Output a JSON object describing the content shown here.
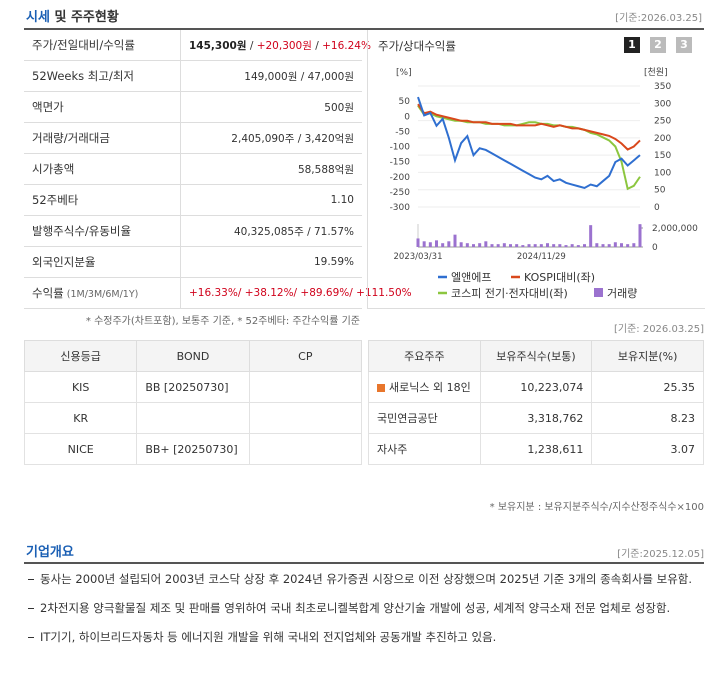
{
  "header": {
    "title_a": "시세",
    "title_b": "및 주주현황",
    "date": "[기준:2026.03.25]"
  },
  "info_table": {
    "rows": [
      {
        "label": "주가/전일대비/수익률",
        "value": [
          "145,300원",
          " / ",
          {
            "text": "+20,300원",
            "color": "#d0021b"
          },
          " / ",
          {
            "text": "+16.24%",
            "color": "#d0021b"
          }
        ]
      },
      {
        "label": "52Weeks 최고/최저",
        "value": [
          "149,000원 / 47,000원"
        ]
      },
      {
        "label": "액면가",
        "value": [
          "500원"
        ]
      },
      {
        "label": "거래량/거래대금",
        "value": [
          "2,405,090주 / 3,420억원"
        ]
      },
      {
        "label": "시가총액",
        "value": [
          "58,588억원"
        ]
      },
      {
        "label": "52주베타",
        "value": [
          "1.10"
        ]
      },
      {
        "label": "발행주식수/유동비율",
        "value": [
          "40,325,085주 / 71.57%"
        ]
      },
      {
        "label": "외국인지분율",
        "value": [
          "19.59%"
        ]
      },
      {
        "label": "수익률",
        "label_note": "(1M/3M/6M/1Y)",
        "value": [
          {
            "text": "+16.33%/ +38.12%/ +89.69%/ +111.50%",
            "color": "#d0021b"
          }
        ]
      }
    ],
    "note": "* 수정주가(차트포함), 보통주 기준, * 52주베타: 주간수익률 기준"
  },
  "chart_panel": {
    "title": "주가/상대수익률",
    "buttons": [
      "1",
      "2",
      "3"
    ],
    "date": "[기준: 2026.03.25]"
  },
  "chart_data": {
    "type": "line",
    "y_unit": "[%]",
    "y2_unit": "[천원]",
    "categories": [
      "2023/03/31",
      null,
      null,
      null,
      null,
      null,
      null,
      null,
      null,
      null,
      null,
      null,
      null,
      null,
      null,
      null,
      null,
      null,
      null,
      null,
      "2024/11/29",
      null,
      null,
      null,
      null,
      null,
      null,
      null,
      null,
      null,
      null,
      null,
      null,
      null,
      null,
      null,
      null
    ],
    "ylim": [
      -300,
      100
    ],
    "yticks": [
      50,
      0,
      -50,
      -100,
      -150,
      -200,
      -250,
      -300
    ],
    "y2lim": [
      0,
      350
    ],
    "y2ticks": [
      350,
      300,
      250,
      200,
      150,
      100,
      50,
      0
    ],
    "vlim": [
      0,
      2000000
    ],
    "vticks": [
      {
        "value": 2000000,
        "label": "2,000,000"
      },
      0
    ],
    "grid": true,
    "series": [
      {
        "name": "엘앤에프",
        "color": "#2f6fd0",
        "axis": "y2",
        "values": [
          318,
          265,
          272,
          235,
          255,
          200,
          135,
          185,
          205,
          150,
          170,
          165,
          155,
          145,
          135,
          125,
          115,
          105,
          95,
          85,
          80,
          90,
          75,
          80,
          70,
          65,
          60,
          55,
          65,
          60,
          75,
          90,
          130,
          140,
          120,
          135,
          150
        ]
      },
      {
        "name": "KOSPI대비(좌)",
        "color": "#d9481c",
        "values": [
          40,
          10,
          15,
          5,
          0,
          -5,
          -10,
          -15,
          -15,
          -20,
          -20,
          -20,
          -25,
          -25,
          -25,
          -25,
          -30,
          -30,
          -30,
          -30,
          -25,
          -30,
          -35,
          -30,
          -35,
          -40,
          -40,
          -45,
          -50,
          -55,
          -60,
          -65,
          -75,
          -90,
          -110,
          -100,
          -80
        ]
      },
      {
        "name": "코스피 전기·전자대비(좌)",
        "color": "#8cc63f",
        "values": [
          35,
          5,
          10,
          0,
          -5,
          -10,
          -15,
          -15,
          -20,
          -20,
          -20,
          -25,
          -25,
          -25,
          -30,
          -30,
          -30,
          -25,
          -20,
          -20,
          -25,
          -25,
          -30,
          -30,
          -35,
          -35,
          -40,
          -45,
          -55,
          -60,
          -70,
          -80,
          -100,
          -150,
          -240,
          -230,
          -200
        ]
      }
    ],
    "volume": {
      "name": "거래량",
      "color": "#9b72cf",
      "values": [
        900000,
        600000,
        500000,
        700000,
        400000,
        600000,
        1300000,
        500000,
        400000,
        300000,
        400000,
        600000,
        300000,
        300000,
        400000,
        300000,
        300000,
        200000,
        300000,
        300000,
        300000,
        400000,
        300000,
        300000,
        200000,
        300000,
        200000,
        300000,
        2300000,
        400000,
        300000,
        300000,
        500000,
        400000,
        300000,
        400000,
        2400000
      ]
    }
  },
  "credit_table": {
    "headers": [
      "신용등급",
      "BOND",
      "CP"
    ],
    "rows": [
      [
        "KIS",
        "BB [20250730]",
        null
      ],
      [
        "KR",
        null,
        null
      ],
      [
        "NICE",
        "BB+ [20250730]",
        null
      ]
    ]
  },
  "holders_table": {
    "headers": [
      "주요주주",
      "보유주식수(보통)",
      "보유지분(%)"
    ],
    "rows": [
      [
        "새로닉스 외 18인",
        "10,223,074",
        "25.35"
      ],
      [
        "국민연금공단",
        "3,318,762",
        "8.23"
      ],
      [
        "자사주",
        "1,238,611",
        "3.07"
      ]
    ],
    "note": "* 보유지분 : 보유지분주식수/지수산정주식수×100"
  },
  "overview": {
    "title": "기업개요",
    "date": "[기준:2025.12.05]",
    "items": [
      "동사는 2000년 설립되어 2003년 코스닥 상장 후 2024년 유가증권 시장으로 이전 상장했으며 2025년 기준 3개의 종속회사를 보유함.",
      "2차전지용 양극활물질 제조 및 판매를 영위하여 국내 최초로니켈복합계 양산기술 개발에 성공, 세계적 양극소재 전문 업체로 성장함.",
      "IT기기, 하이브리드자동차 등 에너지원 개발을 위해 국내외 전지업체와 공동개발 추진하고 있음."
    ]
  }
}
